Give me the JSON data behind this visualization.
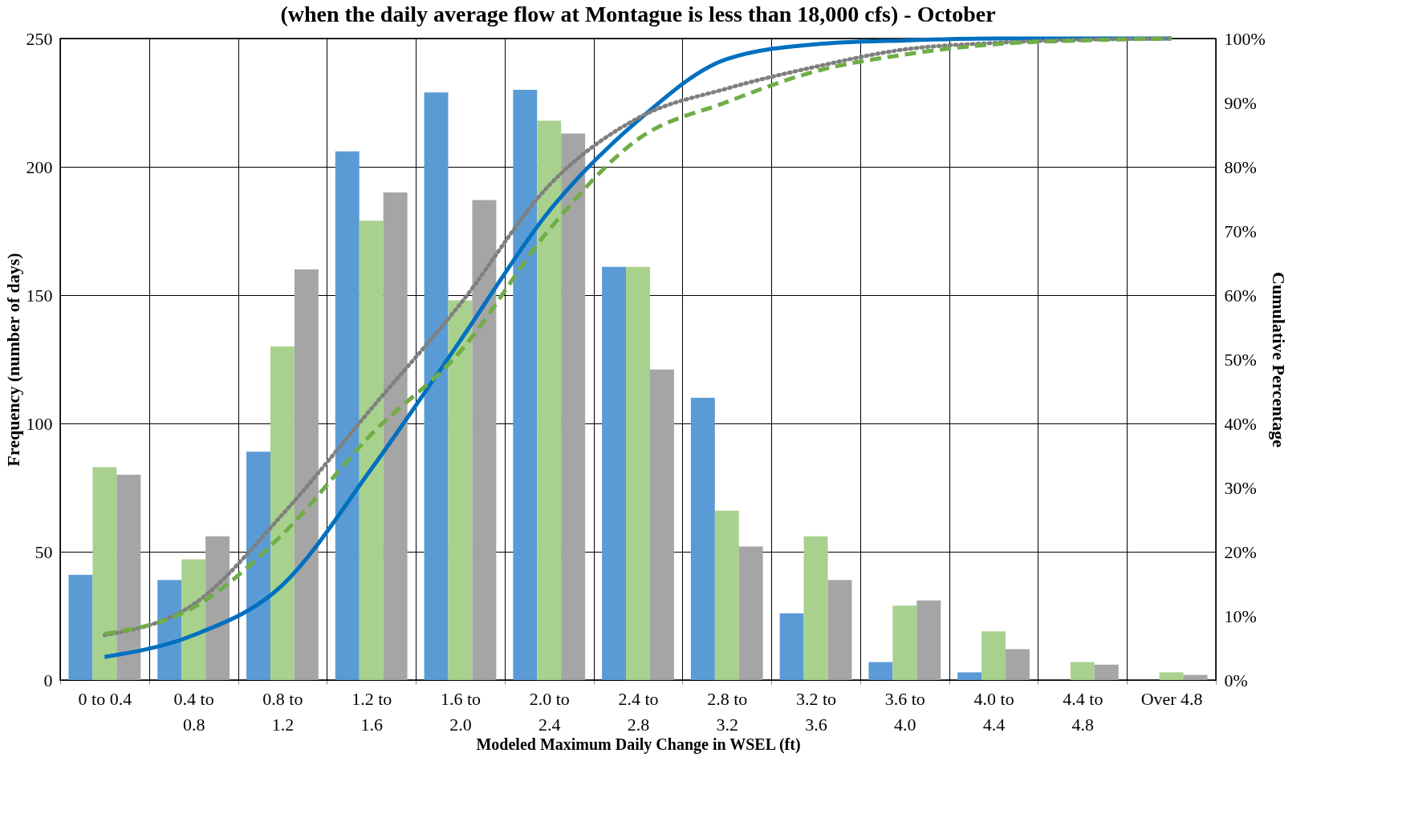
{
  "chart_data": {
    "type": "bar",
    "title": "(when the daily average flow at Montague is less than 18,000 cfs) - October",
    "xlabel": "Modeled Maximum Daily Change in WSEL (ft)",
    "ylabel": "Frequency (number of days)",
    "y2label": "Cumulative Percentage",
    "categories": [
      "0 to 0.4",
      "0.4 to 0.8",
      "0.8 to 1.2",
      "1.2 to 1.6",
      "1.6 to 2.0",
      "2.0 to 2.4",
      "2.4 to 2.8",
      "2.8 to 3.2",
      "3.2 to 3.6",
      "3.6 to 4.0",
      "4.0 to 4.4",
      "4.4 to 4.8",
      "Over 4.8"
    ],
    "series": [
      {
        "color": "#5b9bd5",
        "values": [
          41,
          39,
          89,
          206,
          229,
          230,
          161,
          110,
          26,
          7,
          3,
          0,
          0
        ]
      },
      {
        "color": "#a9d18e",
        "values": [
          83,
          47,
          130,
          179,
          148,
          218,
          161,
          66,
          56,
          29,
          19,
          7,
          3
        ]
      },
      {
        "color": "#a5a5a5",
        "values": [
          80,
          56,
          160,
          190,
          187,
          213,
          121,
          52,
          39,
          31,
          12,
          6,
          2
        ]
      },
      {
        "type": "line",
        "axis": "y2",
        "line_style": "solid",
        "color": "#0070c0",
        "values": [
          3.6,
          7.0,
          14.8,
          32.9,
          52.9,
          73.1,
          87.2,
          96.8,
          99.1,
          99.7,
          100,
          100,
          100
        ]
      },
      {
        "type": "line",
        "axis": "y2",
        "line_style": "dotted",
        "color": "#7f7f7f",
        "values": [
          7.0,
          11.8,
          25.8,
          42.3,
          58.6,
          77.1,
          87.6,
          92.2,
          95.6,
          98.3,
          99.3,
          99.8,
          100
        ]
      },
      {
        "type": "line",
        "axis": "y2",
        "line_style": "dashed",
        "color": "#70ad47",
        "values": [
          7.2,
          11.3,
          22.7,
          38.3,
          51.2,
          70.2,
          84.3,
          90.1,
          94.9,
          97.5,
          99.1,
          99.7,
          100
        ]
      }
    ],
    "ylim": [
      0,
      250
    ],
    "yticks": [
      0,
      50,
      100,
      150,
      200,
      250
    ],
    "y2lim": [
      0,
      100
    ],
    "y2ticks": [
      {
        "value": 0,
        "label": "0%"
      },
      {
        "value": 10,
        "label": "10%"
      },
      {
        "value": 20,
        "label": "20%"
      },
      {
        "value": 30,
        "label": "30%"
      },
      {
        "value": 40,
        "label": "40%"
      },
      {
        "value": 50,
        "label": "50%"
      },
      {
        "value": 60,
        "label": "60%"
      },
      {
        "value": 70,
        "label": "70%"
      },
      {
        "value": 80,
        "label": "80%"
      },
      {
        "value": 90,
        "label": "90%"
      },
      {
        "value": 100,
        "label": "100%"
      }
    ],
    "grid": true,
    "legend": false
  }
}
